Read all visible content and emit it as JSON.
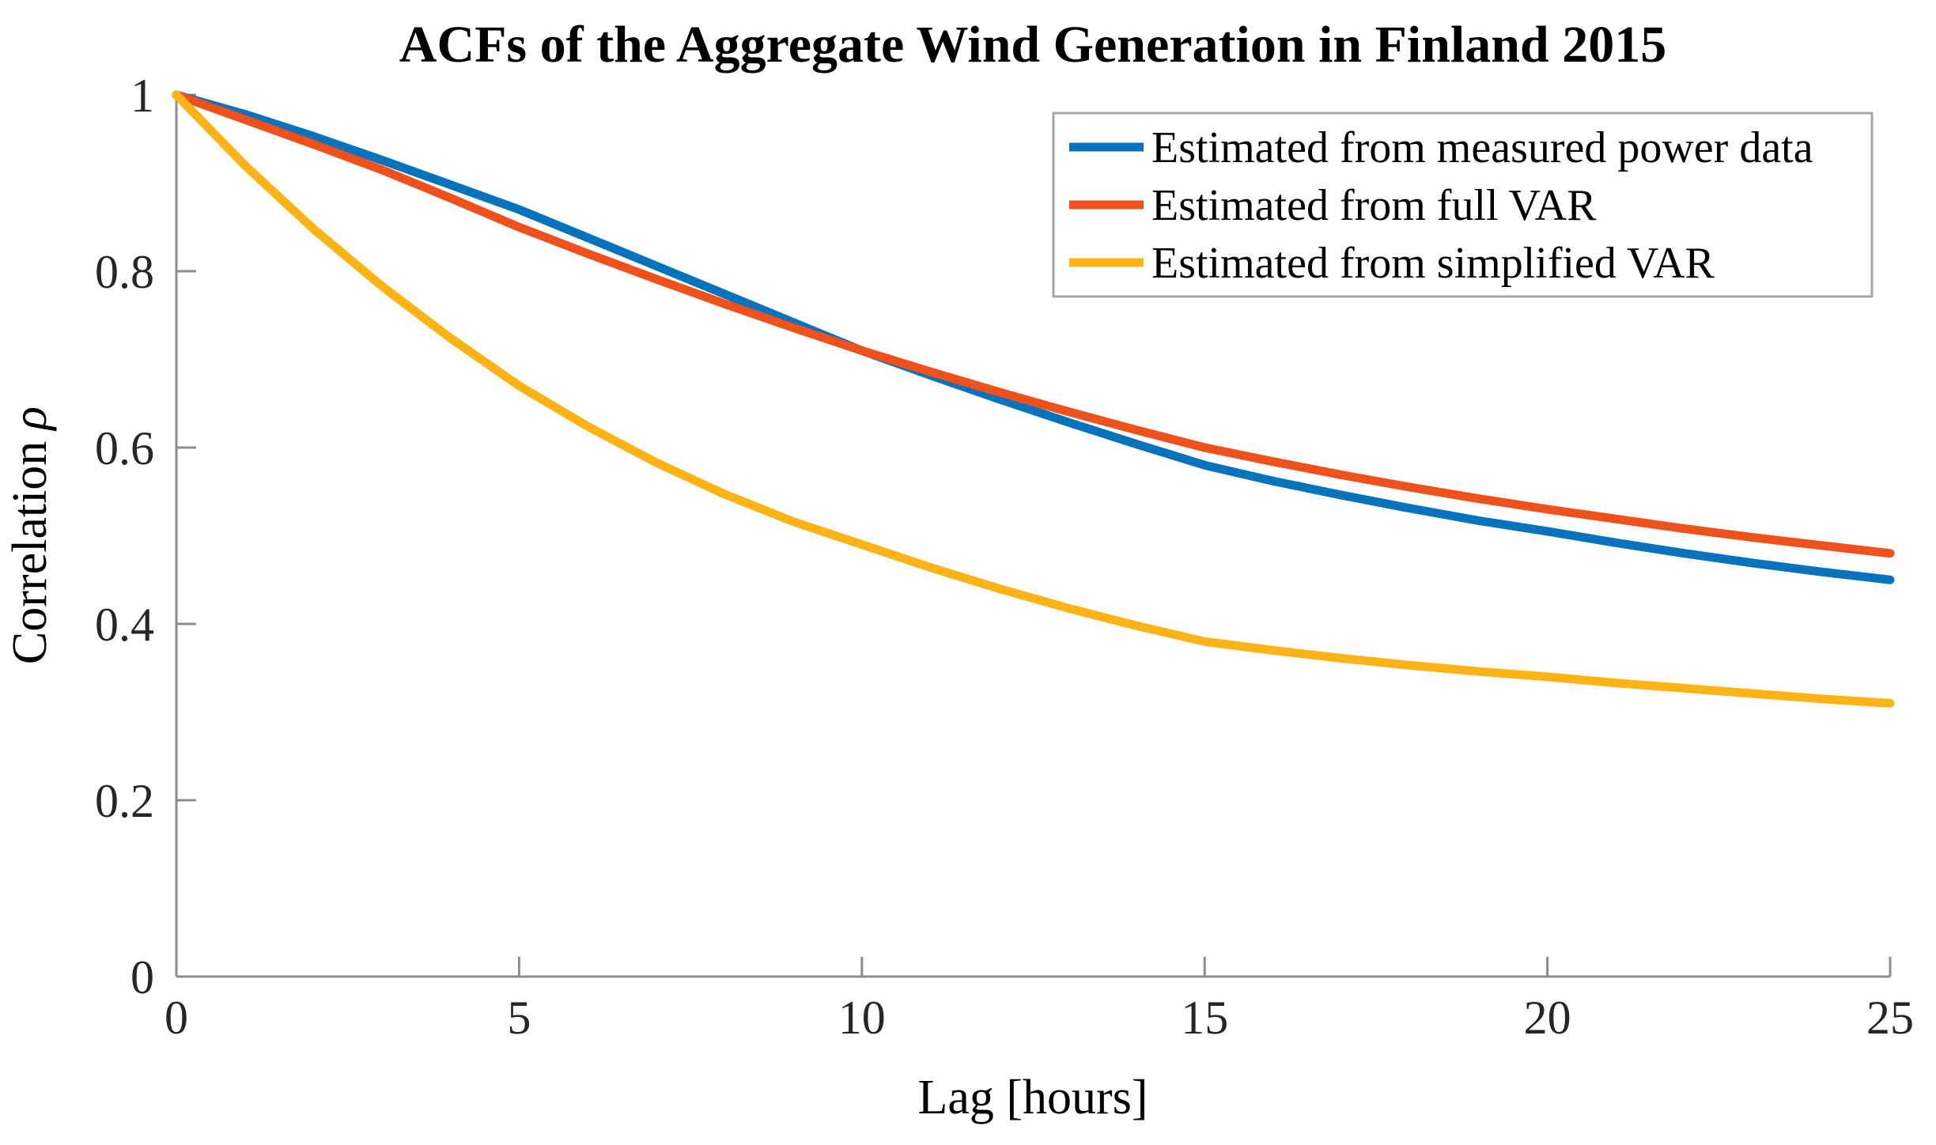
{
  "figure": {
    "title": "ACFs of the Aggregate Wind Generation in Finland 2015",
    "xlabel": "Lag [hours]",
    "ylabel_word": "Correlation",
    "ylabel_symbol": "ρ"
  },
  "chart_data": {
    "type": "line",
    "title": "ACFs of the Aggregate Wind Generation in Finland 2015",
    "xlabel": "Lag [hours]",
    "ylabel": "Correlation ρ",
    "xlim": [
      0,
      25
    ],
    "ylim": [
      0,
      1
    ],
    "xticks": [
      0,
      5,
      10,
      15,
      20,
      25
    ],
    "xtick_labels": [
      "0",
      "5",
      "10",
      "15",
      "20",
      "25"
    ],
    "yticks": [
      0,
      0.2,
      0.4,
      0.6,
      0.8,
      1
    ],
    "ytick_labels": [
      "0",
      "0.2",
      "0.4",
      "0.6",
      "0.8",
      "1"
    ],
    "grid": false,
    "legend_position": "upper right",
    "axis_color": "#8c8c8c",
    "legend_border_color": "#a6a6a6",
    "x": [
      0,
      1,
      2,
      3,
      4,
      5,
      6,
      7,
      8,
      9,
      10,
      11,
      12,
      13,
      14,
      15,
      16,
      17,
      18,
      19,
      20,
      21,
      22,
      23,
      24,
      25
    ],
    "series": [
      {
        "name": "Estimated from measured power data",
        "color": "#0873bd",
        "values": [
          1.0,
          0.978,
          0.953,
          0.926,
          0.898,
          0.87,
          0.838,
          0.806,
          0.774,
          0.742,
          0.71,
          0.682,
          0.655,
          0.629,
          0.604,
          0.58,
          0.562,
          0.546,
          0.531,
          0.517,
          0.505,
          0.492,
          0.48,
          0.469,
          0.459,
          0.45
        ]
      },
      {
        "name": "Estimated from full VAR",
        "color": "#ef511c",
        "values": [
          1.0,
          0.972,
          0.944,
          0.915,
          0.883,
          0.85,
          0.82,
          0.791,
          0.763,
          0.736,
          0.71,
          0.686,
          0.663,
          0.641,
          0.62,
          0.6,
          0.584,
          0.569,
          0.555,
          0.542,
          0.53,
          0.519,
          0.508,
          0.498,
          0.489,
          0.48
        ]
      },
      {
        "name": "Estimated from simplified VAR",
        "color": "#fcb315",
        "values": [
          1.0,
          0.92,
          0.848,
          0.783,
          0.724,
          0.67,
          0.624,
          0.583,
          0.547,
          0.516,
          0.49,
          0.464,
          0.44,
          0.418,
          0.398,
          0.38,
          0.37,
          0.361,
          0.353,
          0.346,
          0.34,
          0.333,
          0.327,
          0.321,
          0.315,
          0.31
        ]
      }
    ]
  }
}
